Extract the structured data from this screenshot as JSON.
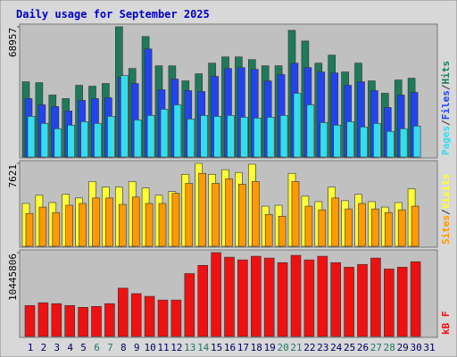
{
  "chart_data": [
    {
      "type": "bar",
      "title": "Daily usage for September 2025",
      "legend_separator": "/",
      "ylim": [
        0,
        68957
      ],
      "yticks": [
        68957
      ],
      "series": [
        {
          "name": "Pages",
          "color": "#33ddee",
          "values": [
            21580,
            17830,
            15010,
            16890,
            18760,
            17830,
            21580,
            43160,
            19700,
            22050,
            25330,
            27680,
            20170,
            22050,
            21580,
            22050,
            21110,
            20640,
            21110,
            22050,
            33780,
            27680,
            18290,
            16890,
            18760,
            15950,
            17830,
            13600,
            15010,
            16420,
            null
          ]
        },
        {
          "name": "Files",
          "color": "#2244ee",
          "values": [
            30960,
            27680,
            26740,
            24390,
            30020,
            30960,
            31430,
            42220,
            38940,
            57230,
            35650,
            41280,
            35180,
            34710,
            42690,
            46910,
            47380,
            46440,
            40340,
            43630,
            49720,
            47380,
            45030,
            44560,
            38000,
            39870,
            35180,
            26270,
            32840,
            34240,
            null
          ]
        },
        {
          "name": "Hits",
          "color": "#1f7a5a",
          "values": [
            39870,
            39400,
            32840,
            30960,
            38000,
            37530,
            38940,
            68957,
            46910,
            63800,
            48320,
            48320,
            40340,
            44100,
            49720,
            53010,
            53010,
            51600,
            48320,
            48320,
            67080,
            61450,
            49720,
            53950,
            45030,
            49720,
            40340,
            33780,
            40810,
            41750,
            null
          ]
        }
      ]
    },
    {
      "type": "bar",
      "legend_separator": "/",
      "ylim": [
        0,
        7621
      ],
      "yticks": [
        7621
      ],
      "series": [
        {
          "name": "Sites",
          "color": "#ff9900",
          "values": [
            3015,
            3601,
            3099,
            3769,
            3936,
            4439,
            4439,
            3853,
            4523,
            3936,
            3936,
            4858,
            5779,
            6700,
            5779,
            6198,
            5695,
            5946,
            2931,
            2764,
            5946,
            3685,
            3350,
            4439,
            3434,
            3936,
            3434,
            3099,
            3350,
            3685,
            null
          ]
        },
        {
          "name": "Visits",
          "color": "#ffff33",
          "values": [
            3936,
            4690,
            4020,
            4774,
            4439,
            5946,
            5444,
            5444,
            5946,
            5360,
            4690,
            5025,
            6616,
            7621,
            6616,
            7035,
            6784,
            7538,
            3685,
            3769,
            6700,
            4606,
            4104,
            5444,
            4188,
            4774,
            4104,
            3601,
            4020,
            5276,
            null
          ]
        }
      ]
    },
    {
      "type": "bar",
      "legend_separator": "/",
      "ylim": [
        0,
        10445806
      ],
      "yticks": [
        10445806
      ],
      "categories": [
        "1",
        "2",
        "3",
        "4",
        "5",
        "6",
        "7",
        "8",
        "9",
        "10",
        "11",
        "12",
        "13",
        "14",
        "15",
        "16",
        "17",
        "18",
        "19",
        "20",
        "21",
        "22",
        "23",
        "24",
        "25",
        "26",
        "27",
        "28",
        "29",
        "30",
        "31"
      ],
      "category_colors": [
        "#000066",
        "#000066",
        "#000066",
        "#000066",
        "#000066",
        "#227766",
        "#227766",
        "#000066",
        "#000066",
        "#000066",
        "#000066",
        "#000066",
        "#227766",
        "#227766",
        "#000066",
        "#000066",
        "#000066",
        "#000066",
        "#000066",
        "#227766",
        "#227766",
        "#000066",
        "#000066",
        "#000066",
        "#000066",
        "#000066",
        "#227766",
        "#227766",
        "#000066",
        "#000066",
        "#000066"
      ],
      "series": [
        {
          "name": "kB F",
          "color": "#ee1111",
          "values": [
            3860000,
            4201000,
            4087000,
            3860000,
            3633000,
            3747000,
            4087000,
            6018000,
            5336000,
            4998000,
            4542000,
            4542000,
            7834000,
            8856000,
            10445806,
            9878000,
            9537000,
            9992000,
            9765000,
            9197000,
            10105000,
            9537000,
            9992000,
            9197000,
            8629000,
            8970000,
            9765000,
            8402000,
            8629000,
            9310000,
            null
          ]
        }
      ]
    }
  ]
}
